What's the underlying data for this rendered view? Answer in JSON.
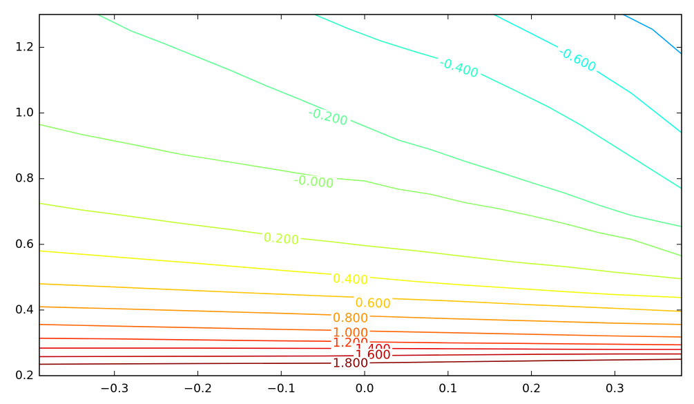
{
  "chart_data": {
    "type": "contour",
    "title": "",
    "xlabel": "",
    "ylabel": "",
    "xlim": [
      -0.39,
      0.38
    ],
    "ylim": [
      0.2,
      1.3
    ],
    "x_ticks": [
      -0.3,
      -0.2,
      -0.1,
      0.0,
      0.1,
      0.2,
      0.3
    ],
    "x_tick_labels": [
      "−0.3",
      "−0.2",
      "−0.1",
      "0.0",
      "0.1",
      "0.2",
      "0.3"
    ],
    "y_ticks": [
      0.2,
      0.4,
      0.6,
      0.8,
      1.0,
      1.2
    ],
    "y_tick_labels": [
      "0.2",
      "0.4",
      "0.6",
      "0.8",
      "1.0",
      "1.2"
    ],
    "grid": false,
    "colormap": "jet",
    "levels": [
      {
        "value": -0.8,
        "label": "",
        "color": "#00a4ff",
        "points": [
          [
            0.31,
            1.3
          ],
          [
            0.345,
            1.255
          ],
          [
            0.38,
            1.18
          ]
        ]
      },
      {
        "value": -0.6,
        "label": "-0.600",
        "color": "#13fce4",
        "points": [
          [
            0.155,
            1.3
          ],
          [
            0.2,
            1.242
          ],
          [
            0.24,
            1.19
          ],
          [
            0.28,
            1.125
          ],
          [
            0.32,
            1.06
          ],
          [
            0.35,
            1.0
          ],
          [
            0.38,
            0.94
          ]
        ]
      },
      {
        "value": -0.4,
        "label": "-0.400",
        "color": "#2bffc9",
        "points": [
          [
            -0.06,
            1.3
          ],
          [
            -0.02,
            1.257
          ],
          [
            0.02,
            1.219
          ],
          [
            0.06,
            1.187
          ],
          [
            0.1,
            1.157
          ],
          [
            0.14,
            1.118
          ],
          [
            0.18,
            1.069
          ],
          [
            0.22,
            1.019
          ],
          [
            0.26,
            0.962
          ],
          [
            0.3,
            0.898
          ],
          [
            0.34,
            0.834
          ],
          [
            0.38,
            0.77
          ]
        ]
      },
      {
        "value": -0.2,
        "label": "-0.200",
        "color": "#5fff96",
        "points": [
          [
            -0.32,
            1.3
          ],
          [
            -0.28,
            1.25
          ],
          [
            -0.24,
            1.211
          ],
          [
            -0.2,
            1.17
          ],
          [
            -0.16,
            1.129
          ],
          [
            -0.12,
            1.085
          ],
          [
            -0.08,
            1.044
          ],
          [
            -0.04,
            1.002
          ],
          [
            0.0,
            0.96
          ],
          [
            0.04,
            0.918
          ],
          [
            0.08,
            0.888
          ],
          [
            0.12,
            0.853
          ],
          [
            0.16,
            0.821
          ],
          [
            0.2,
            0.788
          ],
          [
            0.24,
            0.756
          ],
          [
            0.28,
            0.72
          ],
          [
            0.32,
            0.688
          ],
          [
            0.38,
            0.654
          ]
        ]
      },
      {
        "value": 0.0,
        "label": "-0.000",
        "color": "#8fff66",
        "points": [
          [
            -0.39,
            0.965
          ],
          [
            -0.34,
            0.935
          ],
          [
            -0.28,
            0.905
          ],
          [
            -0.22,
            0.874
          ],
          [
            -0.16,
            0.85
          ],
          [
            -0.1,
            0.825
          ],
          [
            -0.05,
            0.804
          ],
          [
            0.0,
            0.793
          ],
          [
            0.04,
            0.768
          ],
          [
            0.08,
            0.752
          ],
          [
            0.12,
            0.727
          ],
          [
            0.16,
            0.709
          ],
          [
            0.2,
            0.687
          ],
          [
            0.24,
            0.663
          ],
          [
            0.28,
            0.636
          ],
          [
            0.32,
            0.615
          ],
          [
            0.38,
            0.565
          ]
        ]
      },
      {
        "value": 0.2,
        "label": "0.200",
        "color": "#c3ff33",
        "points": [
          [
            -0.39,
            0.725
          ],
          [
            -0.34,
            0.705
          ],
          [
            -0.28,
            0.685
          ],
          [
            -0.22,
            0.664
          ],
          [
            -0.16,
            0.645
          ],
          [
            -0.1,
            0.624
          ],
          [
            -0.04,
            0.608
          ],
          [
            0.0,
            0.596
          ],
          [
            0.06,
            0.581
          ],
          [
            0.12,
            0.563
          ],
          [
            0.18,
            0.546
          ],
          [
            0.24,
            0.532
          ],
          [
            0.3,
            0.515
          ],
          [
            0.38,
            0.495
          ]
        ]
      },
      {
        "value": 0.4,
        "label": "0.400",
        "color": "#f3f90a",
        "points": [
          [
            -0.39,
            0.58
          ],
          [
            -0.3,
            0.562
          ],
          [
            -0.2,
            0.542
          ],
          [
            -0.1,
            0.521
          ],
          [
            0.0,
            0.501
          ],
          [
            0.06,
            0.487
          ],
          [
            0.12,
            0.476
          ],
          [
            0.18,
            0.466
          ],
          [
            0.24,
            0.456
          ],
          [
            0.3,
            0.447
          ],
          [
            0.38,
            0.438
          ]
        ]
      },
      {
        "value": 0.6,
        "label": "0.600",
        "color": "#ffc400",
        "points": [
          [
            -0.39,
            0.48
          ],
          [
            -0.3,
            0.47
          ],
          [
            -0.2,
            0.459
          ],
          [
            -0.1,
            0.448
          ],
          [
            -0.05,
            0.443
          ],
          [
            0.0,
            0.438
          ],
          [
            0.1,
            0.428
          ],
          [
            0.2,
            0.416
          ],
          [
            0.3,
            0.405
          ],
          [
            0.38,
            0.396
          ]
        ]
      },
      {
        "value": 0.8,
        "label": "0.800",
        "color": "#ff9400",
        "points": [
          [
            -0.39,
            0.41
          ],
          [
            -0.3,
            0.404
          ],
          [
            -0.2,
            0.397
          ],
          [
            -0.1,
            0.39
          ],
          [
            -0.05,
            0.386
          ],
          [
            0.0,
            0.382
          ],
          [
            0.1,
            0.374
          ],
          [
            0.2,
            0.367
          ],
          [
            0.3,
            0.36
          ],
          [
            0.38,
            0.356
          ]
        ]
      },
      {
        "value": 1.0,
        "label": "1.000",
        "color": "#ff6400",
        "points": [
          [
            -0.39,
            0.356
          ],
          [
            -0.3,
            0.351
          ],
          [
            -0.2,
            0.346
          ],
          [
            -0.1,
            0.341
          ],
          [
            -0.05,
            0.339
          ],
          [
            0.0,
            0.336
          ],
          [
            0.1,
            0.331
          ],
          [
            0.2,
            0.326
          ],
          [
            0.3,
            0.321
          ],
          [
            0.38,
            0.318
          ]
        ]
      },
      {
        "value": 1.2,
        "label": "1.200",
        "color": "#ff3000",
        "points": [
          [
            -0.39,
            0.314
          ],
          [
            -0.3,
            0.312
          ],
          [
            -0.2,
            0.309
          ],
          [
            -0.1,
            0.306
          ],
          [
            -0.05,
            0.305
          ],
          [
            0.0,
            0.303
          ],
          [
            0.1,
            0.3
          ],
          [
            0.2,
            0.298
          ],
          [
            0.3,
            0.296
          ],
          [
            0.38,
            0.294
          ]
        ]
      },
      {
        "value": 1.4,
        "label": "1.400",
        "color": "#e50000",
        "points": [
          [
            -0.39,
            0.284
          ],
          [
            -0.2,
            0.284
          ],
          [
            -0.05,
            0.283
          ],
          [
            0.0,
            0.283
          ],
          [
            0.1,
            0.282
          ],
          [
            0.2,
            0.281
          ],
          [
            0.3,
            0.28
          ],
          [
            0.38,
            0.28
          ]
        ]
      },
      {
        "value": 1.6,
        "label": "1.600",
        "color": "#c00000",
        "points": [
          [
            -0.39,
            0.258
          ],
          [
            -0.2,
            0.259
          ],
          [
            -0.05,
            0.26
          ],
          [
            0.0,
            0.261
          ],
          [
            0.1,
            0.263
          ],
          [
            0.2,
            0.265
          ],
          [
            0.3,
            0.266
          ],
          [
            0.38,
            0.266
          ]
        ]
      },
      {
        "value": 1.8,
        "label": "1.800",
        "color": "#8b0000",
        "points": [
          [
            -0.39,
            0.235
          ],
          [
            -0.2,
            0.237
          ],
          [
            -0.05,
            0.238
          ],
          [
            0.0,
            0.239
          ],
          [
            0.1,
            0.242
          ],
          [
            0.2,
            0.245
          ],
          [
            0.3,
            0.248
          ],
          [
            0.38,
            0.25
          ]
        ]
      }
    ],
    "inline_labels": [
      {
        "level": -0.6,
        "text": "-0.600",
        "x": 0.255,
        "y": 1.163,
        "rotate": 27
      },
      {
        "level": -0.4,
        "text": "-0.400",
        "x": 0.113,
        "y": 1.137,
        "rotate": 18
      },
      {
        "level": -0.2,
        "text": "-0.200",
        "x": -0.044,
        "y": 0.988,
        "rotate": 14
      },
      {
        "level": 0.0,
        "text": "-0.000",
        "x": -0.061,
        "y": 0.79,
        "rotate": 6
      },
      {
        "level": 0.2,
        "text": "0.200",
        "x": -0.1,
        "y": 0.616,
        "rotate": 5
      },
      {
        "level": 0.4,
        "text": "0.400",
        "x": -0.017,
        "y": 0.493,
        "rotate": 3
      },
      {
        "level": 0.6,
        "text": "0.600",
        "x": 0.01,
        "y": 0.42,
        "rotate": 2
      },
      {
        "level": 0.8,
        "text": "0.800",
        "x": -0.017,
        "y": 0.375,
        "rotate": 1
      },
      {
        "level": 1.0,
        "text": "1.000",
        "x": -0.017,
        "y": 0.33,
        "rotate": 1
      },
      {
        "level": 1.2,
        "text": "1.200",
        "x": -0.017,
        "y": 0.3,
        "rotate": 0
      },
      {
        "level": 1.4,
        "text": "1.400",
        "x": 0.01,
        "y": 0.281,
        "rotate": 0
      },
      {
        "level": 1.6,
        "text": "1.600",
        "x": 0.01,
        "y": 0.263,
        "rotate": 0
      },
      {
        "level": 1.8,
        "text": "1.800",
        "x": -0.017,
        "y": 0.238,
        "rotate": 0
      }
    ]
  }
}
